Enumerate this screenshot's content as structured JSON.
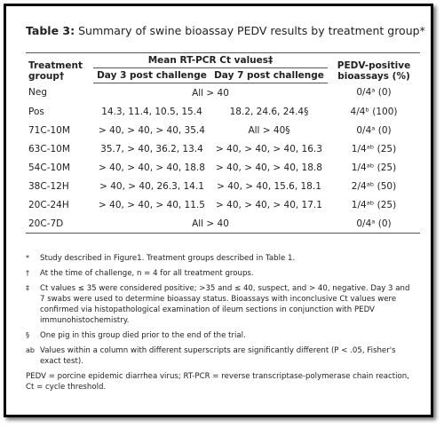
{
  "title": {
    "label": "Table 3:",
    "text": "Summary of swine bioassay PEDV results by treatment group*"
  },
  "table": {
    "headers": {
      "group": "Treatment group†",
      "mean": "Mean RT-PCR Ct values‡",
      "day3": "Day 3 post challenge",
      "day7": "Day 7 post challenge",
      "positive": "PEDV-positive bioassays (%)"
    },
    "rows": [
      [
        "Neg",
        "All > 40",
        "0/4ᵃ (0)"
      ],
      [
        "Pos",
        "14.3, 11.4, 10.5, 15.4",
        "18.2, 24.6, 24.4§",
        "4/4ᵇ (100)"
      ],
      [
        "71C-10M",
        "> 40, > 40, > 40, 35.4",
        "All > 40§",
        "0/4ᵃ (0)"
      ],
      [
        "63C-10M",
        "35.7, > 40, 36.2, 13.4",
        "> 40, > 40, > 40, 16.3",
        "1/4ᵃᵇ (25)"
      ],
      [
        "54C-10M",
        "> 40, > 40, > 40, 18.8",
        "> 40, > 40, > 40, 18.8",
        "1/4ᵃᵇ (25)"
      ],
      [
        "38C-12H",
        "> 40, > 40, 26.3, 14.1",
        "> 40, > 40, 15.6, 18.1",
        "2/4ᵃᵇ (50)"
      ],
      [
        "20C-24H",
        "> 40, > 40, > 40, 11.5",
        "> 40, > 40, > 40, 17.1",
        "1/4ᵃᵇ (25)"
      ],
      [
        "20C-7D",
        "All > 40",
        "0/4ᵃ (0)"
      ]
    ]
  },
  "footnotes": [
    {
      "marker": "*",
      "text": "Study described in Figure1. Treatment groups described in Table 1."
    },
    {
      "marker": "†",
      "text": "At the time of challenge, n = 4 for all treatment groups."
    },
    {
      "marker": "‡",
      "text": "Ct values ≤ 35 were considered positive; >35 and ≤ 40, suspect, and > 40, negative. Day 3 and 7 swabs were used to determine bioassay status. Bioassays with inconclusive Ct values were confirmed via histopathological examination of ileum sections in conjunction with PEDV immunohistochemistry."
    },
    {
      "marker": "§",
      "text": "One pig in this group died prior to the end of the trial."
    },
    {
      "marker": "ab",
      "text": "Values within a column with different superscripts are significantly different (P < .05, Fisher's exact test)."
    }
  ],
  "abbreviations": "PEDV = porcine epidemic diarrhea virus; RT-PCR = reverse transcriptase-polymerase chain reaction, Ct = cycle threshold."
}
